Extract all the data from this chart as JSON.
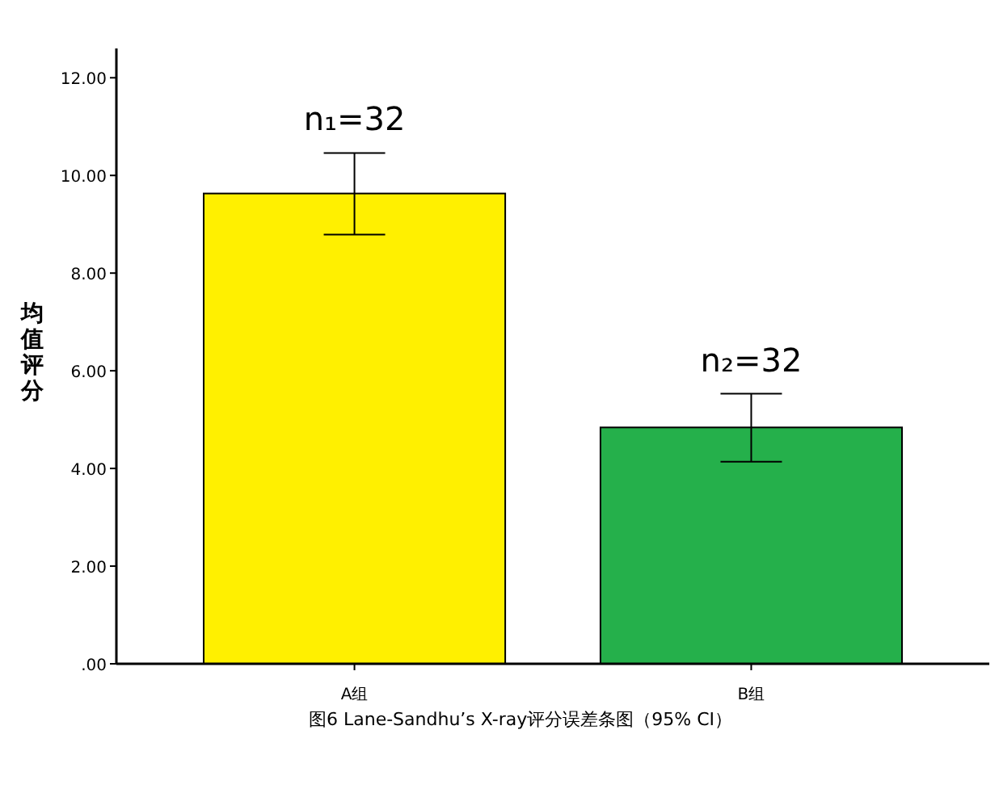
{
  "chart_data": {
    "type": "bar",
    "ylabel": "均值评分",
    "categories": [
      "A组",
      "B组"
    ],
    "values": [
      9.63,
      4.84
    ],
    "colors": [
      "#fff000",
      "#25b04b"
    ],
    "errors": [
      [
        8.79,
        10.46
      ],
      [
        4.14,
        5.53
      ]
    ],
    "ylim": [
      0,
      12.6
    ],
    "yticks": [
      {
        "value": 0,
        "label": ".00"
      },
      {
        "value": 2,
        "label": "2.00"
      },
      {
        "value": 4,
        "label": "4.00"
      },
      {
        "value": 6,
        "label": "6.00"
      },
      {
        "value": 8,
        "label": "8.00"
      },
      {
        "value": 10,
        "label": "10.00"
      },
      {
        "value": 12,
        "label": "12.00"
      }
    ],
    "annotations": [
      "n₁=32",
      "n₂=32",
      "图6  Lane-Sandhu’s X-ray评分误差条图（95% CI）"
    ]
  }
}
